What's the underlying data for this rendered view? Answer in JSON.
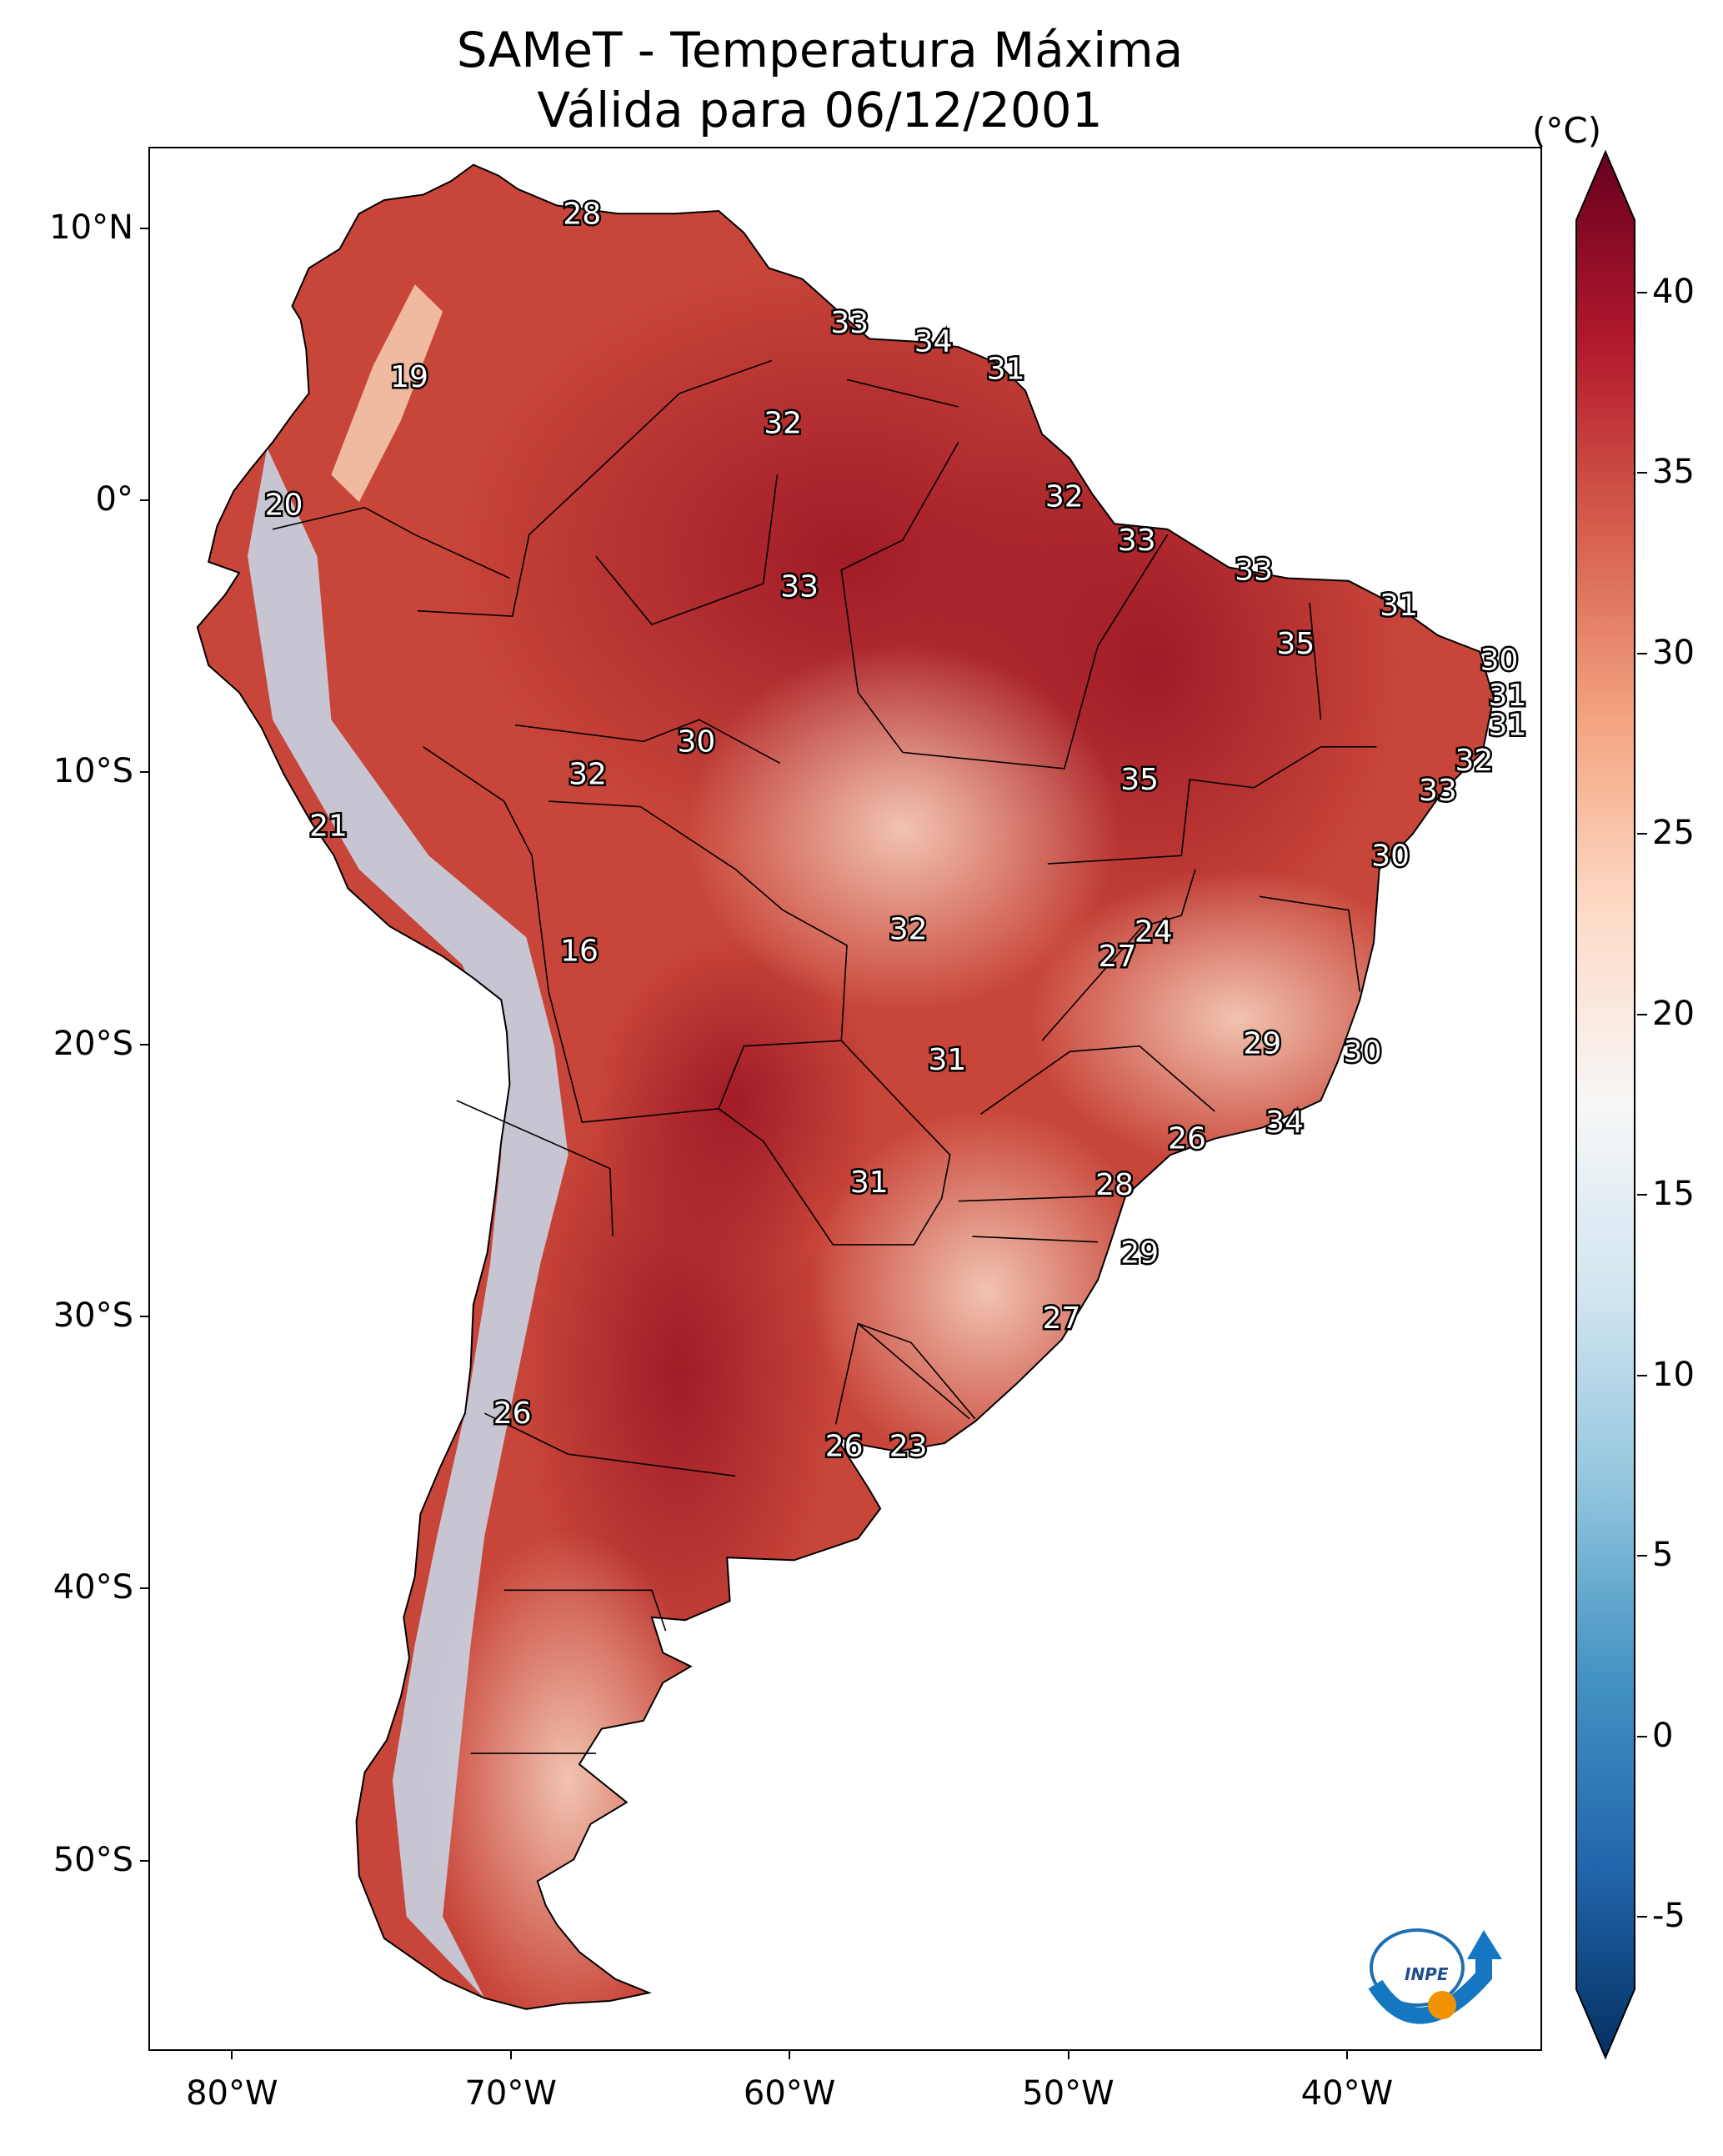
{
  "title": {
    "line1": "SAMeT - Temperatura Máxima",
    "line2": "Válida para 06/12/2001"
  },
  "colorbar": {
    "unit": "(°C)",
    "min": -7,
    "max": 42,
    "ticks": [
      "-5",
      "0",
      "5",
      "10",
      "15",
      "20",
      "25",
      "30",
      "35",
      "40"
    ],
    "tick_values": [
      -5,
      0,
      5,
      10,
      15,
      20,
      25,
      30,
      35,
      40
    ],
    "extend": "both",
    "colormap": "RdBu_r",
    "colors": [
      "#053061",
      "#2166ac",
      "#4393c3",
      "#92c5de",
      "#d1e5f0",
      "#f7f7f7",
      "#fddbc7",
      "#f4a582",
      "#d6604d",
      "#b2182b",
      "#67001f"
    ]
  },
  "axes": {
    "lat_ticks": [
      "10°N",
      "0°",
      "10°S",
      "20°S",
      "30°S",
      "40°S",
      "50°S"
    ],
    "lat_values": [
      10,
      0,
      -10,
      -20,
      -30,
      -40,
      -50
    ],
    "lon_ticks": [
      "80°W",
      "70°W",
      "60°W",
      "50°W",
      "40°W"
    ],
    "lon_values": [
      -80,
      -70,
      -60,
      -50,
      -40
    ],
    "lon_range": [
      -83,
      -33
    ],
    "lat_range": [
      13,
      -57
    ]
  },
  "map": {
    "ocean_color": "#ffffff",
    "land_base_color": "#c8453a",
    "hot_color": "#a51b26",
    "cool_color": "#f4c6ad",
    "andes_cold_color": "#c7dcec",
    "border_color": "#000000"
  },
  "labels": [
    {
      "value": "28",
      "lon": -67.5,
      "lat": 10.6
    },
    {
      "value": "33",
      "lon": -57.9,
      "lat": 6.6
    },
    {
      "value": "34",
      "lon": -54.9,
      "lat": 5.9
    },
    {
      "value": "31",
      "lon": -52.3,
      "lat": 4.9
    },
    {
      "value": "19",
      "lon": -73.7,
      "lat": 4.6
    },
    {
      "value": "32",
      "lon": -60.3,
      "lat": 2.9
    },
    {
      "value": "32",
      "lon": -50.2,
      "lat": 0.2
    },
    {
      "value": "20",
      "lon": -78.2,
      "lat": -0.1
    },
    {
      "value": "33",
      "lon": -47.6,
      "lat": -1.4
    },
    {
      "value": "33",
      "lon": -43.4,
      "lat": -2.5
    },
    {
      "value": "33",
      "lon": -59.7,
      "lat": -3.1
    },
    {
      "value": "31",
      "lon": -38.2,
      "lat": -3.8
    },
    {
      "value": "35",
      "lon": -41.9,
      "lat": -5.2
    },
    {
      "value": "30",
      "lon": -34.6,
      "lat": -5.8
    },
    {
      "value": "31",
      "lon": -34.3,
      "lat": -7.1
    },
    {
      "value": "31",
      "lon": -34.3,
      "lat": -8.2
    },
    {
      "value": "30",
      "lon": -63.4,
      "lat": -8.8
    },
    {
      "value": "32",
      "lon": -35.5,
      "lat": -9.5
    },
    {
      "value": "32",
      "lon": -67.3,
      "lat": -10.0
    },
    {
      "value": "35",
      "lon": -47.5,
      "lat": -10.2
    },
    {
      "value": "33",
      "lon": -36.8,
      "lat": -10.6
    },
    {
      "value": "21",
      "lon": -76.6,
      "lat": -11.9
    },
    {
      "value": "30",
      "lon": -38.5,
      "lat": -13.0
    },
    {
      "value": "32",
      "lon": -55.8,
      "lat": -15.7
    },
    {
      "value": "24",
      "lon": -47.0,
      "lat": -15.8
    },
    {
      "value": "27",
      "lon": -48.3,
      "lat": -16.7
    },
    {
      "value": "16",
      "lon": -67.6,
      "lat": -16.5
    },
    {
      "value": "29",
      "lon": -43.1,
      "lat": -19.9
    },
    {
      "value": "30",
      "lon": -39.5,
      "lat": -20.2
    },
    {
      "value": "31",
      "lon": -54.4,
      "lat": -20.5
    },
    {
      "value": "34",
      "lon": -42.3,
      "lat": -22.8
    },
    {
      "value": "26",
      "lon": -45.8,
      "lat": -23.4
    },
    {
      "value": "31",
      "lon": -57.2,
      "lat": -25.0
    },
    {
      "value": "28",
      "lon": -48.4,
      "lat": -25.1
    },
    {
      "value": "29",
      "lon": -47.5,
      "lat": -27.6
    },
    {
      "value": "27",
      "lon": -50.3,
      "lat": -30.0
    },
    {
      "value": "26",
      "lon": -70.0,
      "lat": -33.5
    },
    {
      "value": "26",
      "lon": -58.1,
      "lat": -34.7
    },
    {
      "value": "23",
      "lon": -55.8,
      "lat": -34.7
    }
  ]
}
